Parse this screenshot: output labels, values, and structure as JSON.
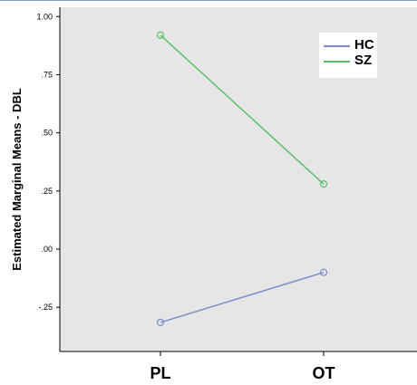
{
  "chart_data": {
    "type": "line",
    "categories": [
      "PL",
      "OT"
    ],
    "ylabel": "Estimated Marginal Means  - DBL",
    "xlabel": "",
    "ylim": [
      -0.44,
      1.04
    ],
    "yticks": [
      1.0,
      0.75,
      0.5,
      0.25,
      0.0,
      -0.25
    ],
    "ytick_labels": [
      "1.00",
      ".75",
      ".50",
      ".25",
      ".00",
      "-.25"
    ],
    "grid": false,
    "legend_position": "top-right",
    "series": [
      {
        "name": "HC",
        "values": [
          -0.315,
          -0.1
        ],
        "color": "#7b8dc8"
      },
      {
        "name": "SZ",
        "values": [
          0.92,
          0.28
        ],
        "color": "#5cbf6c"
      }
    ],
    "background": "#e6e6e6"
  }
}
